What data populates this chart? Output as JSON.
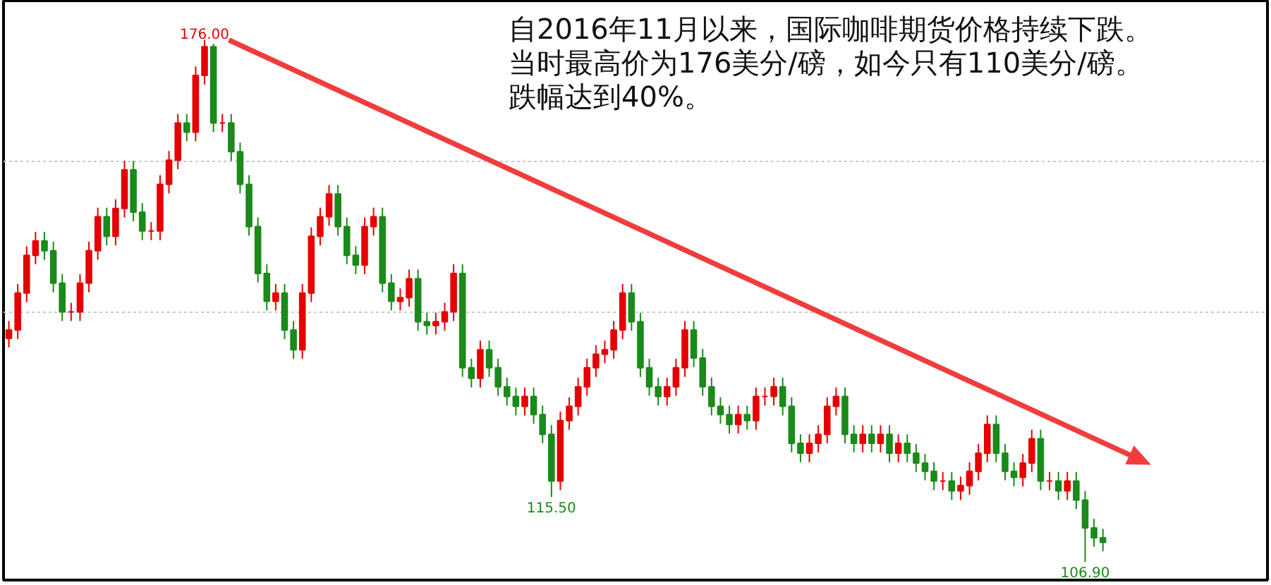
{
  "chart_data": {
    "type": "candlestick",
    "categories": [
      null,
      null,
      null,
      null,
      null,
      null,
      null,
      null,
      null,
      null,
      null,
      null,
      null,
      null,
      null,
      null,
      null,
      null,
      null,
      null,
      null,
      null,
      null,
      null,
      null,
      null,
      null,
      null,
      null,
      null,
      null,
      null,
      null,
      null,
      null,
      null,
      null,
      null,
      null,
      null,
      null,
      null,
      null,
      null,
      null,
      null,
      null,
      null,
      null,
      null,
      null,
      null,
      null,
      null,
      null,
      null,
      null,
      null,
      null,
      null,
      null,
      null,
      null,
      null,
      null,
      null,
      null,
      null,
      null,
      null,
      null,
      null,
      null,
      null,
      null,
      null,
      null,
      null,
      null,
      null,
      null,
      null,
      null,
      null,
      null,
      null,
      null,
      null,
      null,
      null,
      null,
      null,
      null,
      null,
      null,
      null,
      null,
      null,
      null,
      null,
      null,
      null,
      null,
      null,
      null,
      null,
      null,
      null,
      null,
      null,
      null,
      null,
      null,
      null,
      null,
      null,
      null,
      null,
      null,
      null,
      null,
      null,
      null,
      null
    ],
    "ohlc": [
      [
        136.5,
        138.8,
        135.3,
        137.6
      ],
      [
        137.6,
        143.7,
        136.4,
        142.5
      ],
      [
        142.5,
        148.7,
        141.3,
        147.5
      ],
      [
        147.5,
        150.6,
        146.3,
        149.4
      ],
      [
        149.4,
        150.6,
        146.9,
        148.1
      ],
      [
        148.1,
        149.3,
        142.6,
        143.8
      ],
      [
        143.8,
        145.0,
        138.8,
        140.0
      ],
      [
        140.0,
        141.2,
        138.8,
        140.0
      ],
      [
        140.0,
        145.0,
        138.8,
        143.8
      ],
      [
        143.8,
        149.3,
        142.6,
        148.1
      ],
      [
        148.1,
        153.8,
        146.9,
        152.6
      ],
      [
        152.6,
        153.8,
        148.8,
        150.0
      ],
      [
        150.0,
        154.9,
        148.8,
        153.7
      ],
      [
        153.7,
        160.0,
        152.5,
        158.8
      ],
      [
        158.8,
        160.0,
        152.0,
        153.2
      ],
      [
        153.2,
        154.4,
        149.5,
        150.7
      ],
      [
        150.7,
        151.9,
        149.5,
        150.7
      ],
      [
        150.7,
        158.1,
        149.5,
        156.9
      ],
      [
        156.9,
        161.3,
        155.7,
        160.1
      ],
      [
        160.1,
        166.2,
        158.9,
        165.0
      ],
      [
        165.0,
        166.2,
        162.6,
        163.8
      ],
      [
        163.8,
        172.5,
        162.6,
        171.3
      ],
      [
        171.3,
        176.0,
        170.1,
        175.1
      ],
      [
        175.1,
        175.5,
        163.8,
        165.0
      ],
      [
        165.0,
        166.2,
        163.8,
        165.0
      ],
      [
        165.0,
        166.2,
        160.0,
        161.2
      ],
      [
        161.2,
        162.4,
        155.7,
        156.9
      ],
      [
        156.9,
        158.1,
        150.1,
        151.3
      ],
      [
        151.3,
        152.5,
        143.9,
        145.1
      ],
      [
        145.1,
        146.3,
        140.2,
        141.4
      ],
      [
        141.4,
        143.7,
        140.2,
        142.5
      ],
      [
        142.5,
        143.7,
        136.4,
        137.6
      ],
      [
        137.6,
        138.8,
        133.8,
        135.0
      ],
      [
        135.0,
        143.7,
        133.8,
        142.5
      ],
      [
        142.5,
        151.2,
        141.3,
        150.0
      ],
      [
        150.0,
        153.8,
        148.8,
        152.6
      ],
      [
        152.6,
        156.8,
        151.4,
        155.6
      ],
      [
        155.6,
        156.8,
        150.1,
        151.3
      ],
      [
        151.3,
        152.5,
        146.3,
        147.5
      ],
      [
        147.5,
        148.7,
        145.0,
        146.2
      ],
      [
        146.2,
        152.5,
        145.0,
        151.3
      ],
      [
        151.3,
        153.8,
        150.1,
        152.6
      ],
      [
        152.6,
        153.8,
        142.6,
        143.8
      ],
      [
        143.8,
        145.0,
        140.2,
        141.4
      ],
      [
        141.4,
        143.1,
        140.2,
        141.9
      ],
      [
        141.9,
        145.6,
        140.7,
        144.4
      ],
      [
        144.4,
        145.6,
        137.5,
        138.7
      ],
      [
        138.7,
        139.9,
        137.0,
        138.2
      ],
      [
        138.2,
        139.9,
        137.0,
        138.7
      ],
      [
        138.7,
        141.2,
        137.5,
        140.0
      ],
      [
        140.0,
        146.3,
        138.8,
        145.1
      ],
      [
        145.1,
        146.3,
        131.4,
        132.6
      ],
      [
        132.6,
        133.8,
        130.0,
        131.2
      ],
      [
        131.2,
        136.2,
        130.0,
        135.0
      ],
      [
        135.0,
        136.2,
        131.4,
        132.6
      ],
      [
        132.6,
        133.8,
        128.9,
        130.1
      ],
      [
        130.1,
        131.3,
        127.6,
        128.8
      ],
      [
        128.8,
        130.0,
        126.3,
        127.5
      ],
      [
        127.5,
        130.0,
        126.3,
        128.8
      ],
      [
        128.8,
        130.0,
        125.2,
        126.4
      ],
      [
        126.4,
        127.6,
        122.6,
        123.8
      ],
      [
        123.8,
        125.0,
        115.5,
        117.6
      ],
      [
        117.6,
        126.8,
        116.4,
        125.6
      ],
      [
        125.6,
        128.7,
        124.4,
        127.5
      ],
      [
        127.5,
        131.3,
        126.3,
        130.1
      ],
      [
        130.1,
        133.8,
        128.9,
        132.6
      ],
      [
        132.6,
        135.6,
        131.4,
        134.4
      ],
      [
        134.4,
        136.2,
        133.2,
        135.0
      ],
      [
        135.0,
        138.8,
        133.8,
        137.6
      ],
      [
        137.6,
        143.7,
        136.4,
        142.5
      ],
      [
        142.5,
        143.7,
        137.5,
        138.7
      ],
      [
        138.7,
        139.9,
        131.4,
        132.6
      ],
      [
        132.6,
        133.8,
        128.9,
        130.1
      ],
      [
        130.1,
        131.3,
        127.6,
        128.8
      ],
      [
        128.8,
        131.3,
        127.6,
        130.1
      ],
      [
        130.1,
        133.8,
        128.9,
        132.6
      ],
      [
        132.6,
        138.8,
        131.4,
        137.6
      ],
      [
        137.6,
        138.8,
        132.7,
        133.9
      ],
      [
        133.9,
        135.1,
        128.9,
        130.1
      ],
      [
        130.1,
        131.3,
        126.3,
        127.5
      ],
      [
        127.5,
        128.7,
        125.2,
        126.4
      ],
      [
        126.4,
        127.6,
        123.9,
        125.1
      ],
      [
        125.1,
        127.6,
        123.9,
        126.4
      ],
      [
        126.4,
        127.6,
        124.4,
        125.6
      ],
      [
        125.6,
        130.0,
        124.4,
        128.8
      ],
      [
        128.8,
        130.0,
        127.6,
        128.8
      ],
      [
        128.8,
        131.3,
        127.6,
        130.1
      ],
      [
        130.1,
        131.3,
        126.3,
        127.5
      ],
      [
        127.5,
        128.7,
        121.4,
        122.6
      ],
      [
        122.6,
        123.8,
        120.1,
        121.3
      ],
      [
        121.3,
        123.8,
        120.1,
        122.6
      ],
      [
        122.6,
        125.0,
        121.4,
        123.8
      ],
      [
        123.8,
        128.7,
        122.6,
        127.5
      ],
      [
        127.5,
        130.0,
        126.3,
        128.8
      ],
      [
        128.8,
        130.0,
        122.6,
        123.8
      ],
      [
        123.8,
        125.0,
        121.4,
        122.6
      ],
      [
        122.6,
        125.0,
        121.4,
        123.8
      ],
      [
        123.8,
        125.0,
        121.4,
        122.6
      ],
      [
        122.6,
        125.0,
        121.4,
        123.8
      ],
      [
        123.8,
        125.0,
        120.1,
        121.3
      ],
      [
        121.3,
        123.8,
        120.1,
        122.6
      ],
      [
        122.6,
        123.8,
        120.1,
        121.3
      ],
      [
        121.3,
        122.5,
        118.8,
        120.0
      ],
      [
        120.0,
        121.2,
        117.7,
        118.9
      ],
      [
        118.9,
        120.1,
        116.4,
        117.6
      ],
      [
        117.6,
        118.8,
        116.4,
        117.6
      ],
      [
        117.6,
        118.8,
        115.1,
        116.3
      ],
      [
        116.3,
        118.2,
        115.1,
        117.0
      ],
      [
        117.0,
        120.1,
        115.8,
        118.9
      ],
      [
        118.9,
        122.5,
        117.7,
        121.3
      ],
      [
        121.3,
        126.3,
        120.1,
        125.1
      ],
      [
        125.1,
        126.3,
        120.1,
        121.3
      ],
      [
        121.3,
        122.5,
        117.7,
        118.9
      ],
      [
        118.9,
        120.1,
        116.9,
        118.1
      ],
      [
        118.1,
        121.2,
        116.9,
        120.0
      ],
      [
        120.0,
        124.4,
        118.8,
        123.2
      ],
      [
        123.2,
        124.4,
        116.4,
        117.6
      ],
      [
        117.6,
        118.8,
        116.4,
        117.6
      ],
      [
        117.6,
        118.8,
        115.1,
        116.3
      ],
      [
        116.3,
        118.8,
        115.1,
        117.6
      ],
      [
        117.6,
        118.8,
        113.9,
        115.1
      ],
      [
        115.1,
        116.3,
        106.9,
        111.4
      ],
      [
        111.4,
        112.6,
        108.9,
        110.1
      ],
      [
        110.1,
        111.3,
        108.3,
        109.5
      ]
    ],
    "colors": [
      "#e60000",
      "#e60000",
      "#e60000",
      "#e60000",
      "#1a8a1a",
      "#1a8a1a",
      "#1a8a1a",
      "#e60000",
      "#e60000",
      "#e60000",
      "#e60000",
      "#1a8a1a",
      "#e60000",
      "#e60000",
      "#1a8a1a",
      "#1a8a1a",
      "#e60000",
      "#e60000",
      "#e60000",
      "#e60000",
      "#1a8a1a",
      "#e60000",
      "#e60000",
      "#1a8a1a",
      "#e60000",
      "#1a8a1a",
      "#1a8a1a",
      "#1a8a1a",
      "#1a8a1a",
      "#1a8a1a",
      "#e60000",
      "#1a8a1a",
      "#1a8a1a",
      "#e60000",
      "#e60000",
      "#e60000",
      "#e60000",
      "#1a8a1a",
      "#1a8a1a",
      "#1a8a1a",
      "#e60000",
      "#e60000",
      "#1a8a1a",
      "#1a8a1a",
      "#e60000",
      "#e60000",
      "#1a8a1a",
      "#1a8a1a",
      "#e60000",
      "#e60000",
      "#e60000",
      "#1a8a1a",
      "#1a8a1a",
      "#e60000",
      "#1a8a1a",
      "#1a8a1a",
      "#1a8a1a",
      "#1a8a1a",
      "#e60000",
      "#1a8a1a",
      "#1a8a1a",
      "#1a8a1a",
      "#e60000",
      "#e60000",
      "#e60000",
      "#e60000",
      "#e60000",
      "#e60000",
      "#e60000",
      "#e60000",
      "#1a8a1a",
      "#1a8a1a",
      "#1a8a1a",
      "#1a8a1a",
      "#e60000",
      "#e60000",
      "#e60000",
      "#1a8a1a",
      "#1a8a1a",
      "#1a8a1a",
      "#1a8a1a",
      "#1a8a1a",
      "#e60000",
      "#1a8a1a",
      "#e60000",
      "#e60000",
      "#e60000",
      "#1a8a1a",
      "#1a8a1a",
      "#1a8a1a",
      "#e60000",
      "#e60000",
      "#e60000",
      "#e60000",
      "#1a8a1a",
      "#1a8a1a",
      "#e60000",
      "#1a8a1a",
      "#e60000",
      "#1a8a1a",
      "#e60000",
      "#1a8a1a",
      "#1a8a1a",
      "#1a8a1a",
      "#1a8a1a",
      "#e60000",
      "#1a8a1a",
      "#e60000",
      "#e60000",
      "#e60000",
      "#e60000",
      "#1a8a1a",
      "#1a8a1a",
      "#1a8a1a",
      "#e60000",
      "#e60000",
      "#1a8a1a",
      "#e60000",
      "#1a8a1a",
      "#e60000",
      "#1a8a1a",
      "#1a8a1a",
      "#1a8a1a",
      "#1a8a1a"
    ],
    "ylim": [
      104.5,
      181.2
    ],
    "yticks": [
      {
        "value": 160,
        "label": null
      },
      {
        "value": 140,
        "label": null
      }
    ],
    "grid": "y",
    "tick_labels": false,
    "annotations": [
      {
        "text": "176.00",
        "y": 176.0
      },
      {
        "text": "115.50",
        "y": 115.5
      },
      {
        "text": "106.90",
        "y": 106.9
      },
      "自2016年11月以来，国际咖啡期货价格持续下跌。",
      "当时最高价为176美分/磅，如今只有110美分/磅。",
      "跌幅达到40%。"
    ]
  }
}
